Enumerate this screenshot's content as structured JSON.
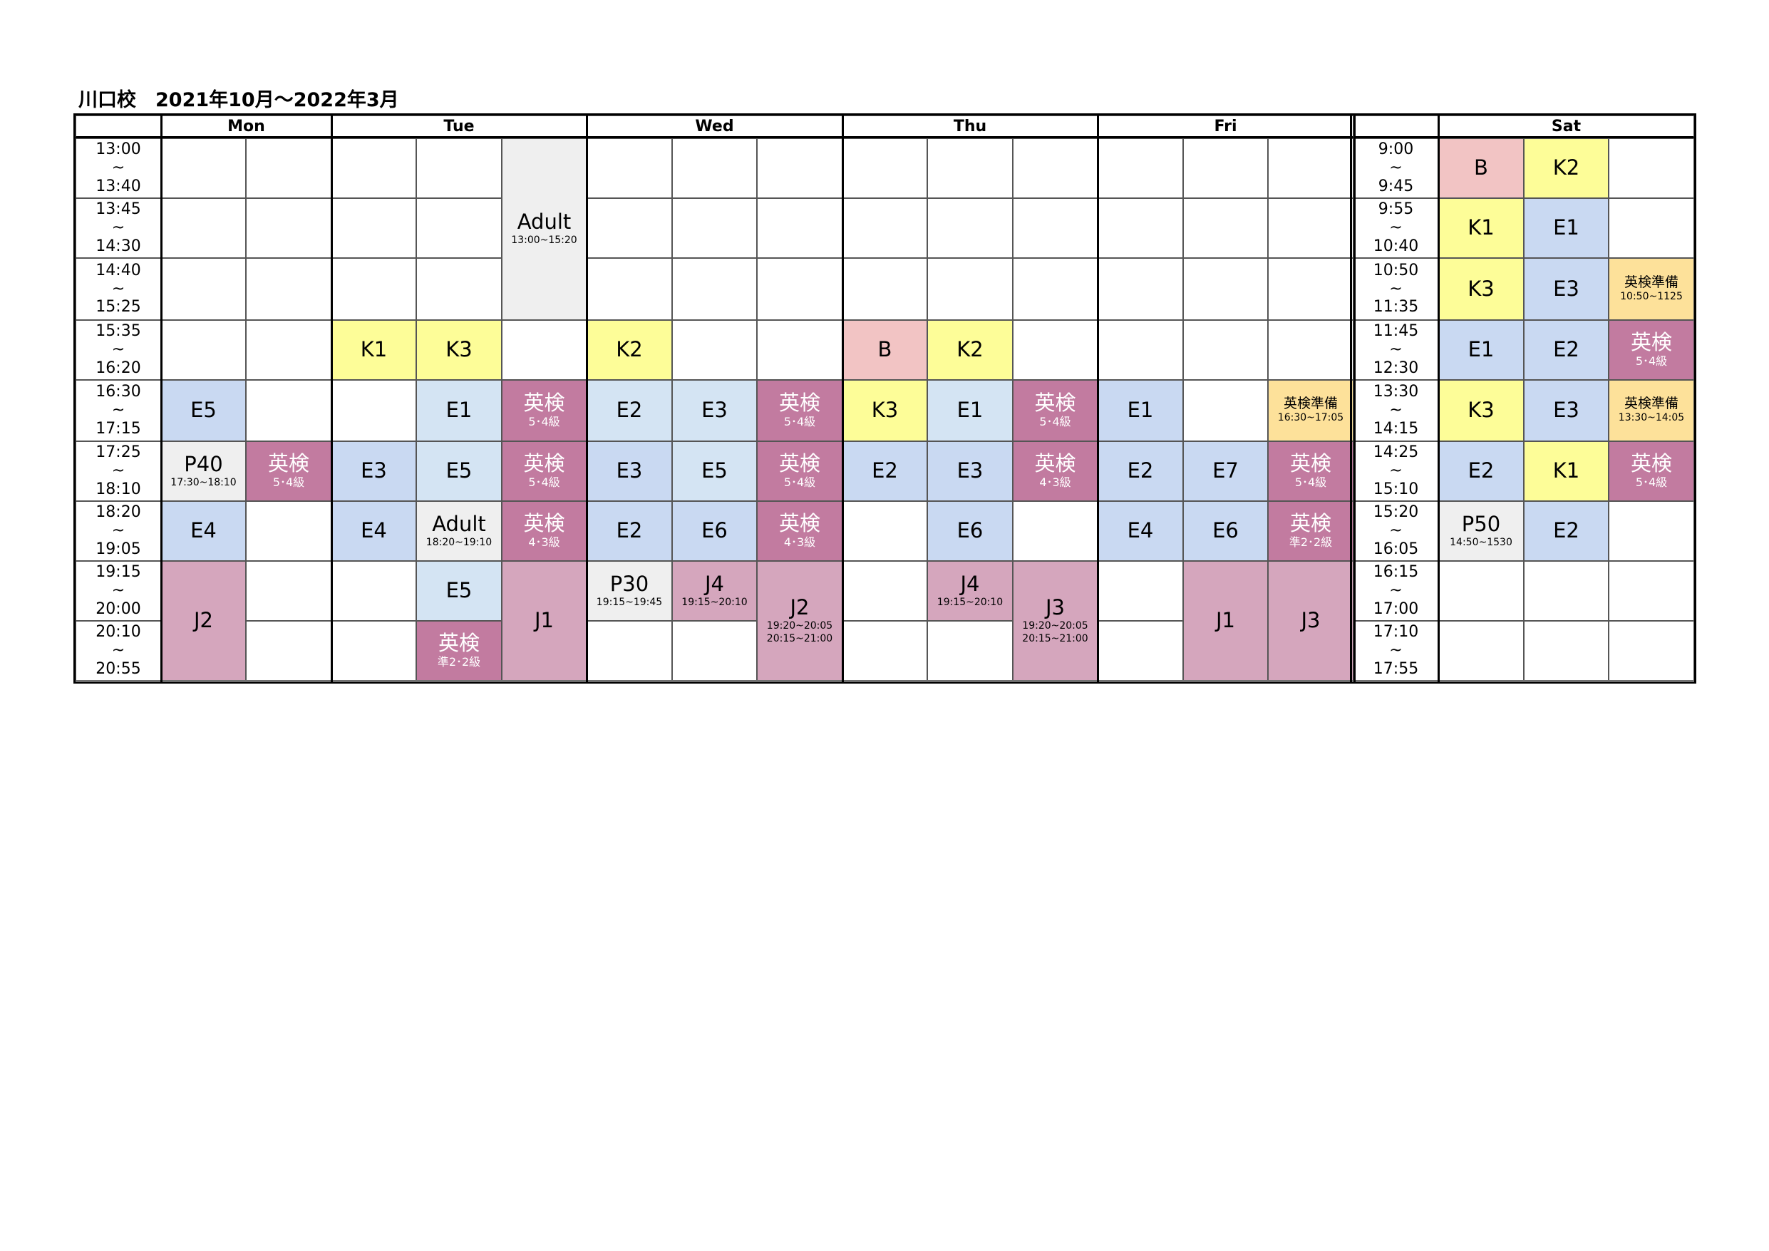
{
  "title": "川口校　2021年10月～2022年3月",
  "headers": [
    "Mon",
    "Tue",
    "Wed",
    "Thu",
    "Fri",
    "Sat"
  ],
  "times_left": [
    [
      "13:00",
      "~",
      "13:40"
    ],
    [
      "13:45",
      "~",
      "14:30"
    ],
    [
      "14:40",
      "~",
      "15:25"
    ],
    [
      "15:35",
      "~",
      "16:20"
    ],
    [
      "16:30",
      "~",
      "17:15"
    ],
    [
      "17:25",
      "~",
      "18:10"
    ],
    [
      "18:20",
      "~",
      "19:05"
    ],
    [
      "19:15",
      "~",
      "20:00"
    ],
    [
      "20:10",
      "~",
      "20:55"
    ]
  ],
  "times_right": [
    [
      "9:00",
      "~",
      "9:45"
    ],
    [
      "9:55",
      "~",
      "10:40"
    ],
    [
      "10:50",
      "~",
      "11:35"
    ],
    [
      "11:45",
      "~",
      "12:30"
    ],
    [
      "13:30",
      "~",
      "14:15"
    ],
    [
      "14:25",
      "~",
      "15:10"
    ],
    [
      "15:20",
      "~",
      "16:05"
    ],
    [
      "16:15",
      "~",
      "17:00"
    ],
    [
      "17:10",
      "~",
      "17:55"
    ]
  ],
  "colors": {
    "blue": "#c9d9f2",
    "light_blue": "#d4e4f3",
    "yellow": "#fdfd98",
    "pink": "#f2c4c4",
    "magenta": "#c27ba0",
    "orchid": "#d5a6bd",
    "grey": "#efefef",
    "orange": "#fde19a"
  },
  "classes": [
    {
      "col": 1,
      "row": 4,
      "label": "E5",
      "color": "blue"
    },
    {
      "col": 1,
      "row": 5,
      "label": "P40",
      "sub": [
        "17:30~18:10"
      ],
      "color": "grey"
    },
    {
      "col": 1,
      "row": 6,
      "label": "E4",
      "color": "blue"
    },
    {
      "col": 1,
      "row": 7,
      "span": 2,
      "label": "J2",
      "color": "orchid"
    },
    {
      "col": 2,
      "row": 5,
      "label": "英検",
      "sub": [
        "5･4級"
      ],
      "color": "magenta"
    },
    {
      "col": 3,
      "row": 3,
      "label": "K1",
      "color": "yellow"
    },
    {
      "col": 3,
      "row": 5,
      "label": "E3",
      "color": "blue"
    },
    {
      "col": 3,
      "row": 6,
      "label": "E4",
      "color": "blue"
    },
    {
      "col": 4,
      "row": 3,
      "label": "K3",
      "color": "yellow"
    },
    {
      "col": 4,
      "row": 4,
      "label": "E1",
      "color": "light_blue"
    },
    {
      "col": 4,
      "row": 5,
      "label": "E5",
      "color": "light_blue"
    },
    {
      "col": 4,
      "row": 6,
      "label": "Adult",
      "sub": [
        "18:20~19:10"
      ],
      "color": "grey"
    },
    {
      "col": 4,
      "row": 7,
      "label": "E5",
      "color": "light_blue"
    },
    {
      "col": 4,
      "row": 8,
      "label": "英検",
      "sub": [
        "準2･2級"
      ],
      "color": "magenta"
    },
    {
      "col": 5,
      "row": 0,
      "span": 3,
      "label": "Adult",
      "sub": [
        "13:00~15:20"
      ],
      "color": "grey"
    },
    {
      "col": 5,
      "row": 4,
      "label": "英検",
      "sub": [
        "5･4級"
      ],
      "color": "magenta"
    },
    {
      "col": 5,
      "row": 5,
      "label": "英検",
      "sub": [
        "5･4級"
      ],
      "color": "magenta"
    },
    {
      "col": 5,
      "row": 6,
      "label": "英検",
      "sub": [
        "4･3級"
      ],
      "color": "magenta"
    },
    {
      "col": 5,
      "row": 7,
      "span": 2,
      "label": "J1",
      "color": "orchid"
    },
    {
      "col": 6,
      "row": 3,
      "label": "K2",
      "color": "yellow"
    },
    {
      "col": 6,
      "row": 4,
      "label": "E2",
      "color": "light_blue"
    },
    {
      "col": 6,
      "row": 5,
      "label": "E3",
      "color": "blue"
    },
    {
      "col": 6,
      "row": 6,
      "label": "E2",
      "color": "blue"
    },
    {
      "col": 6,
      "row": 7,
      "label": "P30",
      "sub": [
        "19:15~19:45"
      ],
      "color": "grey"
    },
    {
      "col": 7,
      "row": 4,
      "label": "E3",
      "color": "light_blue"
    },
    {
      "col": 7,
      "row": 5,
      "label": "E5",
      "color": "light_blue"
    },
    {
      "col": 7,
      "row": 6,
      "label": "E6",
      "color": "blue"
    },
    {
      "col": 7,
      "row": 7,
      "label": "J4",
      "sub": [
        "19:15~20:10"
      ],
      "color": "orchid"
    },
    {
      "col": 8,
      "row": 4,
      "label": "英検",
      "sub": [
        "5･4級"
      ],
      "color": "magenta"
    },
    {
      "col": 8,
      "row": 5,
      "label": "英検",
      "sub": [
        "5･4級"
      ],
      "color": "magenta"
    },
    {
      "col": 8,
      "row": 6,
      "label": "英検",
      "sub": [
        "4･3級"
      ],
      "color": "magenta"
    },
    {
      "col": 8,
      "row": 7,
      "span": 2,
      "label": "J2",
      "sub": [
        "19:20~20:05",
        "20:15~21:00"
      ],
      "color": "orchid"
    },
    {
      "col": 9,
      "row": 3,
      "label": "B",
      "color": "pink"
    },
    {
      "col": 9,
      "row": 4,
      "label": "K3",
      "color": "yellow"
    },
    {
      "col": 9,
      "row": 5,
      "label": "E2",
      "color": "blue"
    },
    {
      "col": 10,
      "row": 3,
      "label": "K2",
      "color": "yellow"
    },
    {
      "col": 10,
      "row": 4,
      "label": "E1",
      "color": "light_blue"
    },
    {
      "col": 10,
      "row": 5,
      "label": "E3",
      "color": "blue"
    },
    {
      "col": 10,
      "row": 6,
      "label": "E6",
      "color": "blue"
    },
    {
      "col": 10,
      "row": 7,
      "label": "J4",
      "sub": [
        "19:15~20:10"
      ],
      "color": "orchid"
    },
    {
      "col": 11,
      "row": 4,
      "label": "英検",
      "sub": [
        "5･4級"
      ],
      "color": "magenta"
    },
    {
      "col": 11,
      "row": 5,
      "label": "英検",
      "sub": [
        "4･3級"
      ],
      "color": "magenta"
    },
    {
      "col": 11,
      "row": 7,
      "span": 2,
      "label": "J3",
      "sub": [
        "19:20~20:05",
        "20:15~21:00"
      ],
      "color": "orchid"
    },
    {
      "col": 12,
      "row": 4,
      "label": "E1",
      "color": "blue"
    },
    {
      "col": 12,
      "row": 5,
      "label": "E2",
      "color": "blue"
    },
    {
      "col": 12,
      "row": 6,
      "label": "E4",
      "color": "blue"
    },
    {
      "col": 13,
      "row": 5,
      "label": "E7",
      "color": "blue"
    },
    {
      "col": 13,
      "row": 6,
      "label": "E6",
      "color": "blue"
    },
    {
      "col": 13,
      "row": 7,
      "span": 2,
      "label": "J1",
      "color": "orchid"
    },
    {
      "col": 14,
      "row": 4,
      "label": "英検準備",
      "sub": [
        "16:30~17:05"
      ],
      "color": "orange",
      "small": true
    },
    {
      "col": 14,
      "row": 5,
      "label": "英検",
      "sub": [
        "5･4級"
      ],
      "color": "magenta"
    },
    {
      "col": 14,
      "row": 6,
      "label": "英検",
      "sub": [
        "準2･2級"
      ],
      "color": "magenta"
    },
    {
      "col": 14,
      "row": 7,
      "span": 2,
      "label": "J3",
      "color": "orchid"
    },
    {
      "col": 16,
      "row": 0,
      "label": "B",
      "color": "pink"
    },
    {
      "col": 16,
      "row": 1,
      "label": "K1",
      "color": "yellow"
    },
    {
      "col": 16,
      "row": 2,
      "label": "K3",
      "color": "yellow"
    },
    {
      "col": 16,
      "row": 3,
      "label": "E1",
      "color": "blue"
    },
    {
      "col": 16,
      "row": 4,
      "label": "K3",
      "color": "yellow"
    },
    {
      "col": 16,
      "row": 5,
      "label": "E2",
      "color": "blue"
    },
    {
      "col": 16,
      "row": 6,
      "label": "P50",
      "sub": [
        "14:50~1530"
      ],
      "color": "grey"
    },
    {
      "col": 17,
      "row": 0,
      "label": "K2",
      "color": "yellow"
    },
    {
      "col": 17,
      "row": 1,
      "label": "E1",
      "color": "blue"
    },
    {
      "col": 17,
      "row": 2,
      "label": "E3",
      "color": "blue"
    },
    {
      "col": 17,
      "row": 3,
      "label": "E2",
      "color": "blue"
    },
    {
      "col": 17,
      "row": 4,
      "label": "E3",
      "color": "blue"
    },
    {
      "col": 17,
      "row": 5,
      "label": "K1",
      "color": "yellow"
    },
    {
      "col": 17,
      "row": 6,
      "label": "E2",
      "color": "blue"
    },
    {
      "col": 18,
      "row": 2,
      "label": "英検準備",
      "sub": [
        "10:50~1125"
      ],
      "color": "orange",
      "small": true
    },
    {
      "col": 18,
      "row": 3,
      "label": "英検",
      "sub": [
        "5･4級"
      ],
      "color": "magenta"
    },
    {
      "col": 18,
      "row": 4,
      "label": "英検準備",
      "sub": [
        "13:30~14:05"
      ],
      "color": "orange",
      "small": true
    },
    {
      "col": 18,
      "row": 5,
      "label": "英検",
      "sub": [
        "5･4級"
      ],
      "color": "magenta"
    }
  ]
}
